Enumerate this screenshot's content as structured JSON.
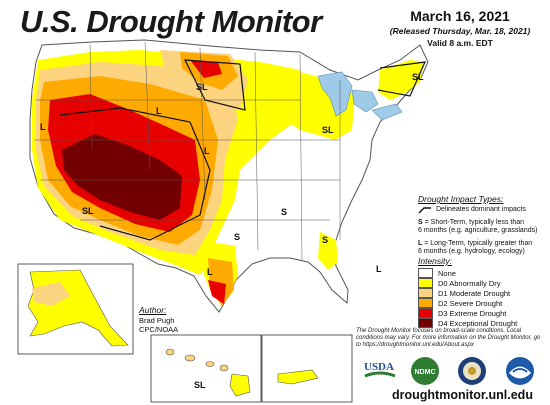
{
  "header": {
    "title": "U.S. Drought Monitor",
    "date": "March 16, 2021",
    "released": "(Released Thursday, Mar. 18, 2021)",
    "valid": "Valid 8 a.m. EDT"
  },
  "impact": {
    "title": "Drought Impact Types:",
    "line_desc": "Delineates dominant impacts",
    "s_key": "S",
    "s_desc1": " = Short-Term, typically less than",
    "s_desc2": "6 months (e.g. agriculture, grasslands)",
    "l_key": "L",
    "l_desc1": " = Long-Term, typically greater than",
    "l_desc2": "6 months (e.g. hydrology, ecology)"
  },
  "intensity": {
    "title": "Intensity:",
    "levels": [
      {
        "label": "None",
        "color": "#ffffff"
      },
      {
        "label": "D0 Abnormally Dry",
        "color": "#ffff00"
      },
      {
        "label": "D1 Moderate Drought",
        "color": "#fcd37f"
      },
      {
        "label": "D2 Severe Drought",
        "color": "#ffaa00"
      },
      {
        "label": "D3 Extreme Drought",
        "color": "#e60000"
      },
      {
        "label": "D4 Exceptional Drought",
        "color": "#730000"
      }
    ]
  },
  "author": {
    "title": "Author:",
    "name": "Brad Pugh",
    "org": "CPC/NOAA"
  },
  "map_labels": {
    "sl": "SL",
    "s": "S",
    "l": "L"
  },
  "disclaimer": "The Drought Monitor focuses on broad-scale conditions. Local conditions may vary. For more information on the Drought Monitor, go to https://droughtmonitor.unl.edu/About.aspx",
  "logos": [
    "USDA",
    "NDMC",
    "U.S. DEPT OF COMMERCE",
    "NOAA"
  ],
  "logo_icons": [
    "usda-logo-icon",
    "ndmc-logo-icon",
    "commerce-seal-icon",
    "noaa-logo-icon"
  ],
  "url": "droughtmonitor.unl.edu"
}
